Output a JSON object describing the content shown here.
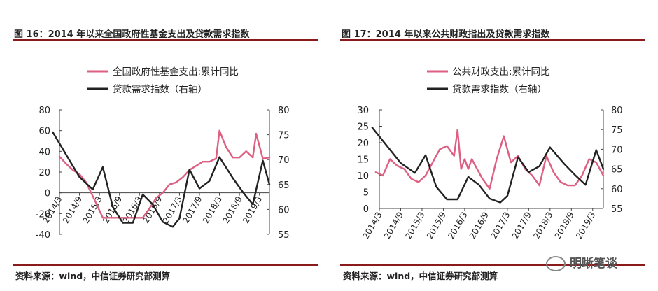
{
  "colors": {
    "pink": "#dd5f82",
    "dark": "#222222",
    "rule": "#8b1a1a"
  },
  "watermark": {
    "icon": "wechat-icon",
    "text": "明晰笔谈"
  },
  "charts": [
    {
      "title": "图 16：2014 年以来全国政府性基金支出及贷款需求指数",
      "source": "资料来源：wind，中信证券研究部测算",
      "legend": [
        "全国政府性基金支出:累计同比",
        "贷款需求指数（右轴）"
      ],
      "left_ticks": [
        "80",
        "60",
        "40",
        "20",
        "0",
        "-20",
        "-40"
      ],
      "right_ticks": [
        "80",
        "75",
        "70",
        "65",
        "60",
        "55"
      ],
      "x_ticks": [
        "2014/3",
        "2014/9",
        "2015/3",
        "2015/9",
        "2016/3",
        "2016/9",
        "2017/3",
        "2017/9",
        "2018/3",
        "2018/9",
        "2019/3"
      ]
    },
    {
      "title": "图 17：2014 年以来公共财政指出及贷款需求指数",
      "source": "资料来源：wind，中信证券研究部测算",
      "legend": [
        "公共财政支出:累计同比",
        "贷款需求指数（右轴）"
      ],
      "left_ticks": [
        "30",
        "25",
        "20",
        "15",
        "10",
        "5",
        "0"
      ],
      "right_ticks": [
        "80",
        "75",
        "70",
        "65",
        "60",
        "55"
      ],
      "x_ticks": [
        "2014/3",
        "2014/9",
        "2015/3",
        "2015/9",
        "2016/3",
        "2016/9",
        "2017/3",
        "2017/9",
        "2018/3",
        "2018/9",
        "2019/3"
      ]
    }
  ],
  "chart_data": [
    {
      "type": "line",
      "title": "图 16：2014 年以来全国政府性基金支出及贷款需求指数",
      "x_start": "2014/3",
      "x_end": "2019/6",
      "x_labels": [
        "2014/3",
        "2014/9",
        "2015/3",
        "2015/9",
        "2016/3",
        "2016/9",
        "2017/3",
        "2017/9",
        "2018/3",
        "2018/9",
        "2019/3"
      ],
      "y_left_range": [
        -40,
        80
      ],
      "y_right_range": [
        55,
        80
      ],
      "grid": false,
      "legend_position": "top",
      "series": [
        {
          "name": "全国政府性基金支出:累计同比",
          "axis": "left",
          "color": "#dd5f82",
          "x": [
            "2014/3",
            "2014/5",
            "2014/7",
            "2014/9",
            "2014/11",
            "2015/2",
            "2015/4",
            "2015/6",
            "2015/8",
            "2015/10",
            "2015/12",
            "2016/2",
            "2016/4",
            "2016/6",
            "2016/8",
            "2016/10",
            "2016/12",
            "2017/2",
            "2017/4",
            "2017/6",
            "2017/8",
            "2017/10",
            "2017/12",
            "2018/2",
            "2018/3",
            "2018/5",
            "2018/7",
            "2018/9",
            "2018/11",
            "2019/1",
            "2019/2",
            "2019/4",
            "2019/6"
          ],
          "y": [
            35,
            28,
            22,
            18,
            10,
            -10,
            -24,
            -24,
            -24,
            -24,
            -24,
            -24,
            -24,
            -15,
            -5,
            0,
            8,
            10,
            15,
            22,
            26,
            30,
            30,
            33,
            60,
            44,
            34,
            34,
            40,
            34,
            57,
            33,
            34
          ]
        },
        {
          "name": "贷款需求指数（右轴）",
          "axis": "right",
          "color": "#222222",
          "x": [
            "2014/1",
            "2014/5",
            "2014/9",
            "2015/1",
            "2015/4",
            "2015/7",
            "2015/10",
            "2016/1",
            "2016/4",
            "2016/7",
            "2016/10",
            "2017/1",
            "2017/3",
            "2017/6",
            "2017/9",
            "2017/12",
            "2018/3",
            "2018/7",
            "2018/10",
            "2019/1",
            "2019/4",
            "2019/6"
          ],
          "y": [
            75.5,
            71.0,
            66.5,
            64.0,
            68.5,
            60.5,
            57.3,
            57.3,
            63.0,
            61.0,
            57.5,
            56.5,
            58.2,
            68.0,
            64.2,
            65.7,
            70.5,
            66.3,
            63.5,
            61.0,
            69.8,
            65.0
          ]
        }
      ]
    },
    {
      "type": "line",
      "title": "图 17：2014 年以来公共财政指出及贷款需求指数",
      "x_start": "2014/3",
      "x_end": "2019/6",
      "x_labels": [
        "2014/3",
        "2014/9",
        "2015/3",
        "2015/9",
        "2016/3",
        "2016/9",
        "2017/3",
        "2017/9",
        "2018/3",
        "2018/9",
        "2019/3"
      ],
      "y_left_range": [
        0,
        30
      ],
      "y_right_range": [
        55,
        80
      ],
      "grid": false,
      "legend_position": "top",
      "series": [
        {
          "name": "公共财政支出:累计同比",
          "axis": "left",
          "color": "#dd5f82",
          "x": [
            "2014/2",
            "2014/4",
            "2014/6",
            "2014/8",
            "2014/10",
            "2014/12",
            "2015/2",
            "2015/4",
            "2015/6",
            "2015/8",
            "2015/10",
            "2015/12",
            "2016/1",
            "2016/2",
            "2016/3",
            "2016/4",
            "2016/5",
            "2016/6",
            "2016/8",
            "2016/10",
            "2016/12",
            "2017/2",
            "2017/4",
            "2017/6",
            "2017/8",
            "2017/10",
            "2017/12",
            "2018/2",
            "2018/4",
            "2018/6",
            "2018/8",
            "2018/10",
            "2018/12",
            "2019/2",
            "2019/4",
            "2019/6"
          ],
          "y": [
            11,
            10,
            15,
            13,
            12,
            9,
            8,
            10,
            14,
            18,
            19,
            16,
            24,
            12,
            15,
            12,
            15,
            13,
            9,
            6,
            15,
            22,
            14,
            16,
            12,
            10,
            7,
            16,
            11,
            8,
            7,
            7,
            10,
            15,
            14,
            10
          ]
        },
        {
          "name": "贷款需求指数（右轴）",
          "axis": "right",
          "color": "#222222",
          "x": [
            "2014/1",
            "2014/5",
            "2014/9",
            "2015/1",
            "2015/4",
            "2015/7",
            "2015/10",
            "2016/1",
            "2016/4",
            "2016/7",
            "2016/10",
            "2017/1",
            "2017/3",
            "2017/6",
            "2017/9",
            "2017/12",
            "2018/3",
            "2018/7",
            "2018/10",
            "2019/1",
            "2019/4",
            "2019/6"
          ],
          "y": [
            75.5,
            71.0,
            66.5,
            64.0,
            68.5,
            60.5,
            57.3,
            57.3,
            63.0,
            61.0,
            57.5,
            56.5,
            58.2,
            68.0,
            64.2,
            65.7,
            70.5,
            66.3,
            63.5,
            61.0,
            69.8,
            65.0
          ]
        }
      ]
    }
  ]
}
